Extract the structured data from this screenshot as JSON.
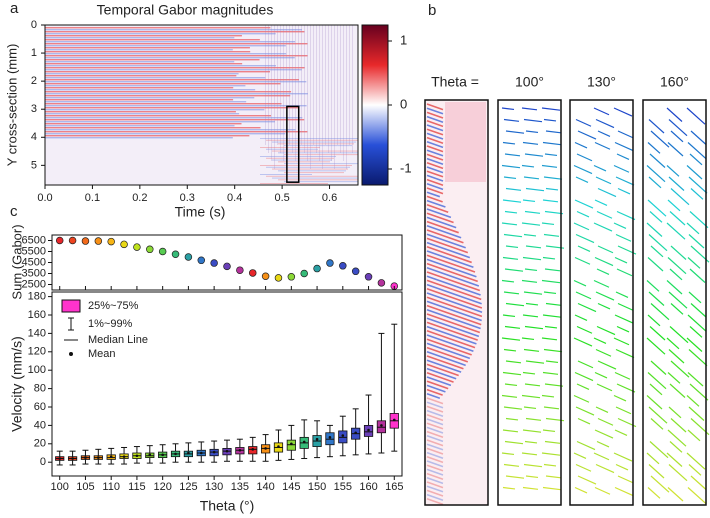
{
  "panel_labels": [
    "a",
    "b",
    "c"
  ],
  "chart_data": [
    {
      "type": "heatmap",
      "title": "Temporal Gabor magnitudes",
      "xlabel": "Time (s)",
      "ylabel": "Y cross-section (mm)",
      "xlim": [
        0,
        0.66
      ],
      "xticks": [
        {
          "value": 0,
          "label": "0.0"
        },
        0.1,
        0.2,
        0.3,
        0.4,
        0.5,
        0.6
      ],
      "ylim": [
        0,
        5.7
      ],
      "y_inverted": true,
      "yticks": [
        0,
        1,
        2,
        3,
        4,
        5
      ],
      "colorbar": {
        "lim": [
          -1.25,
          1.25
        ],
        "ticks": [
          1,
          0,
          -1
        ],
        "colors": [
          "#67001f",
          "#e8282a",
          "#ffffff",
          "#2850d8",
          "#0a1a6e"
        ]
      },
      "highlight": {
        "x": [
          0.51,
          0.535
        ],
        "y": [
          2.9,
          5.6
        ]
      }
    },
    {
      "type": "image",
      "title": "Theta =",
      "categories": [
        "100°",
        "130°",
        "160°"
      ]
    },
    {
      "type": "scatter",
      "ylabel": "Sum (Gabor)",
      "x": [
        100,
        102.5,
        105,
        107.5,
        110,
        112.5,
        115,
        117.5,
        120,
        122.5,
        125,
        127.5,
        130,
        132.5,
        135,
        137.5,
        140,
        142.5,
        145,
        147.5,
        150,
        152.5,
        155,
        157.5,
        160,
        162.5,
        165
      ],
      "values": [
        6500,
        6500,
        6450,
        6450,
        6400,
        6150,
        5900,
        5700,
        5500,
        5250,
        5000,
        4700,
        4450,
        4150,
        3800,
        3550,
        3250,
        3100,
        3200,
        3500,
        3950,
        4450,
        4200,
        3700,
        3200,
        2650,
        2350
      ],
      "colors": [
        "#e8262a",
        "#ee4420",
        "#f26a1a",
        "#f79016",
        "#f7b515",
        "#e9d815",
        "#bfe21c",
        "#8bd936",
        "#58cc52",
        "#36bb78",
        "#2aa0a4",
        "#3076c8",
        "#3a4cc4",
        "#6a3fb8",
        "#b4329c",
        "#e8262a",
        "#f79016",
        "#e9d815",
        "#8bd936",
        "#36bb78",
        "#2aa0a4",
        "#3076c8",
        "#3a4cc4",
        "#3a4cc4",
        "#6a3fb8",
        "#b4329c",
        "#ff33cc"
      ],
      "xlim": [
        98.5,
        166.5
      ],
      "ylim": [
        2000,
        7000
      ],
      "yticks": [
        2500,
        3500,
        4500,
        5500,
        6500
      ]
    },
    {
      "type": "box",
      "xlabel": "Theta (°)",
      "ylabel": "Velocity (mm/s)",
      "x": [
        100,
        102.5,
        105,
        107.5,
        110,
        112.5,
        115,
        117.5,
        120,
        122.5,
        125,
        127.5,
        130,
        132.5,
        135,
        137.5,
        140,
        142.5,
        145,
        147.5,
        150,
        152.5,
        155,
        157.5,
        160,
        162.5,
        165
      ],
      "q1": [
        2,
        2,
        3,
        3,
        3,
        4,
        4,
        5,
        5,
        6,
        6,
        7,
        7,
        8,
        9,
        9,
        10,
        11,
        13,
        15,
        17,
        19,
        21,
        25,
        28,
        32,
        37
      ],
      "q3": [
        6,
        6,
        7,
        7,
        8,
        9,
        10,
        10,
        11,
        12,
        12,
        13,
        14,
        15,
        16,
        17,
        19,
        21,
        24,
        27,
        29,
        32,
        34,
        37,
        40,
        45,
        53
      ],
      "median": [
        4,
        4,
        5,
        5,
        5,
        6,
        7,
        7,
        8,
        9,
        9,
        10,
        11,
        12,
        13,
        14,
        15,
        16,
        19,
        21,
        23,
        25,
        27,
        31,
        33,
        38,
        45
      ],
      "mean": [
        4,
        4,
        5,
        5,
        6,
        6,
        7,
        8,
        8,
        9,
        10,
        10,
        11,
        12,
        13,
        14,
        15,
        17,
        20,
        22,
        25,
        27,
        29,
        32,
        35,
        40,
        46
      ],
      "p1": [
        -3,
        -3,
        -2,
        -2,
        -2,
        -2,
        -1,
        -1,
        -1,
        0,
        0,
        0,
        0,
        1,
        1,
        1,
        1,
        2,
        3,
        4,
        5,
        6,
        7,
        8,
        9,
        10,
        12
      ],
      "p99": [
        12,
        12,
        13,
        14,
        15,
        16,
        17,
        18,
        19,
        20,
        21,
        22,
        23,
        24,
        25,
        27,
        30,
        35,
        40,
        46,
        45,
        40,
        50,
        58,
        73,
        140,
        150
      ],
      "colors": [
        "#e8262a",
        "#ee4420",
        "#f26a1a",
        "#f79016",
        "#f7b515",
        "#e9d815",
        "#bfe21c",
        "#8bd936",
        "#58cc52",
        "#36bb78",
        "#2aa0a4",
        "#3076c8",
        "#3a4cc4",
        "#6a3fb8",
        "#b4329c",
        "#e8262a",
        "#f79016",
        "#e9d815",
        "#8bd936",
        "#36bb78",
        "#2aa0a4",
        "#3076c8",
        "#3a4cc4",
        "#3a4cc4",
        "#6a3fb8",
        "#b4329c",
        "#ff33cc"
      ],
      "xlim": [
        98.5,
        166.5
      ],
      "xticks": [
        100,
        105,
        110,
        115,
        120,
        125,
        130,
        135,
        140,
        145,
        150,
        155,
        160,
        165
      ],
      "ylim": [
        -15,
        185
      ],
      "yticks": [
        0,
        20,
        40,
        60,
        80,
        100,
        120,
        140,
        160,
        180
      ],
      "legend": [
        "25%~75%",
        "1%~99%",
        "Median Line",
        "Mean"
      ],
      "legend_color": "#ff33cc"
    }
  ]
}
